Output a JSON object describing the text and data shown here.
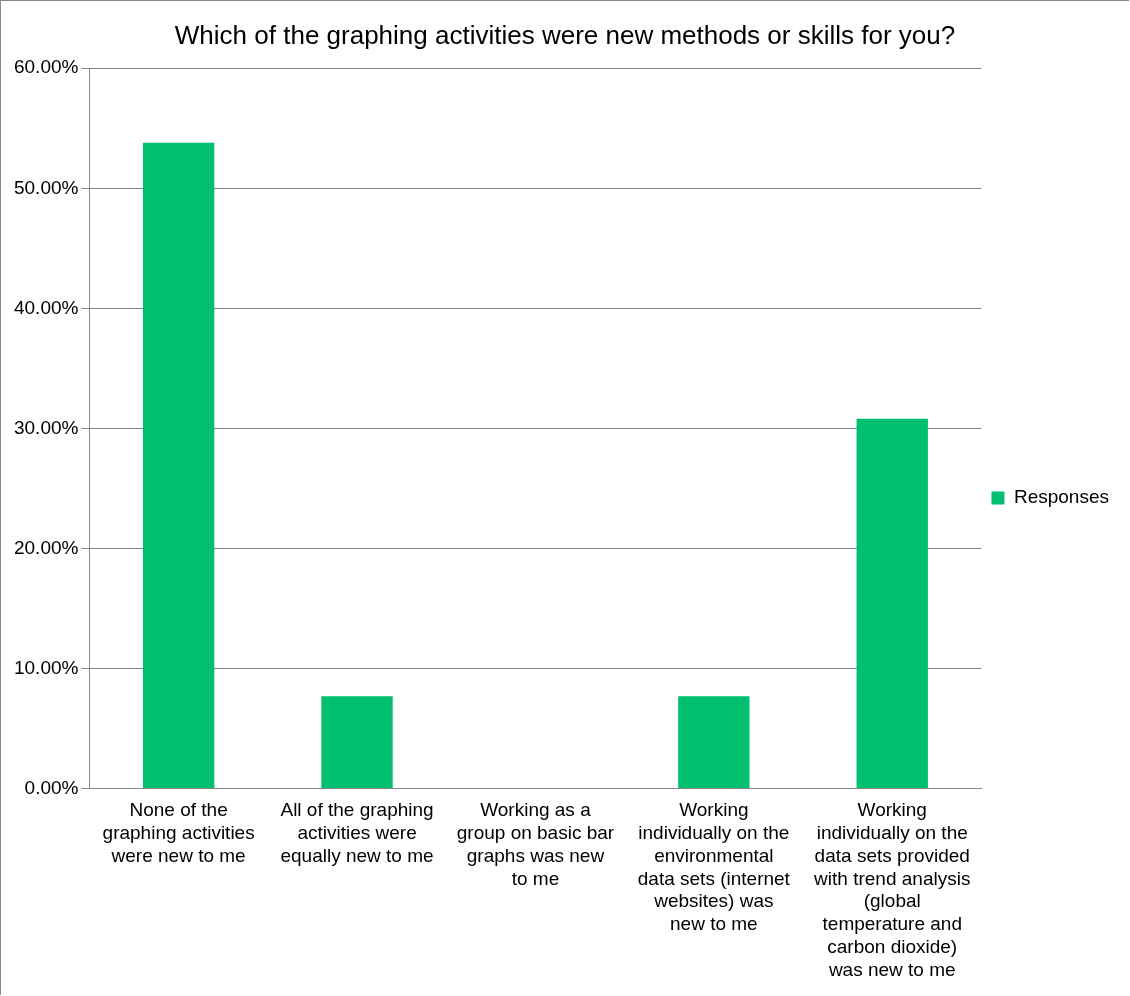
{
  "chart_data": {
    "type": "bar",
    "title": "Which of the graphing activities were new methods or skills for you?",
    "categories": [
      "None of the graphing activities were new to me",
      "All of the graphing activities were equally new to me",
      "Working as a group on basic bar graphs was new to me",
      "Working individually on the environmental data sets (internet websites) was new to me",
      "Working individually on the data sets provided with trend analysis (global temperature and carbon dioxide) was new to me"
    ],
    "series": [
      {
        "name": "Responses",
        "color": "#00c070",
        "values": [
          53.8,
          7.7,
          0,
          7.7,
          30.8
        ]
      }
    ],
    "ylim": [
      0,
      60
    ],
    "yticks": [
      {
        "value": 0,
        "label": "0.00%"
      },
      {
        "value": 10,
        "label": "10.00%"
      },
      {
        "value": 20,
        "label": "20.00%"
      },
      {
        "value": 30,
        "label": "30.00%"
      },
      {
        "value": 40,
        "label": "40.00%"
      },
      {
        "value": 50,
        "label": "50.00%"
      },
      {
        "value": 60,
        "label": "60.00%"
      }
    ],
    "grid": "y",
    "legend": "right"
  }
}
